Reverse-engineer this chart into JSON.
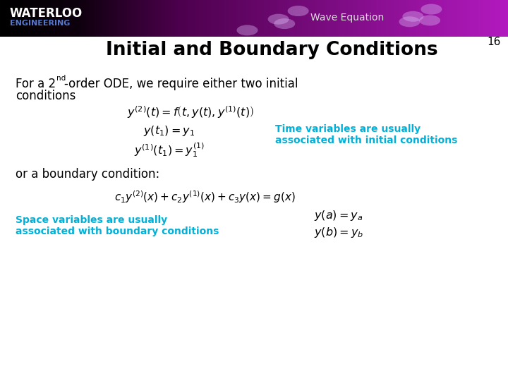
{
  "title": "Initial and Boundary Conditions",
  "subtitle": "Wave Equation",
  "slide_number": "16",
  "background_color": "#ffffff",
  "title_color": "#000000",
  "text_color": "#000000",
  "cyan_color": "#00b0d8",
  "eq1": "$y^{(2)}(t)= f\\left(t,y(t),y^{(1)}(t)\\right)$",
  "eq2": "$y(t_1)= y_1$",
  "eq3": "$y^{(1)}(t_1)= y_1^{(1)}$",
  "cyan_note_1_l1": "Time variables are usually",
  "cyan_note_1_l2": "associated with initial conditions",
  "body_text_2": "or a boundary condition:",
  "eq4": "$c_1 y^{(2)}(x)+c_2 y^{(1)}(x)+c_3 y(x)= g(x)$",
  "eq5": "$y(a)= y_a$",
  "eq6": "$y(b)= y_b$",
  "cyan_note_2_l1": "Space variables are usually",
  "cyan_note_2_l2": "associated with boundary conditions"
}
